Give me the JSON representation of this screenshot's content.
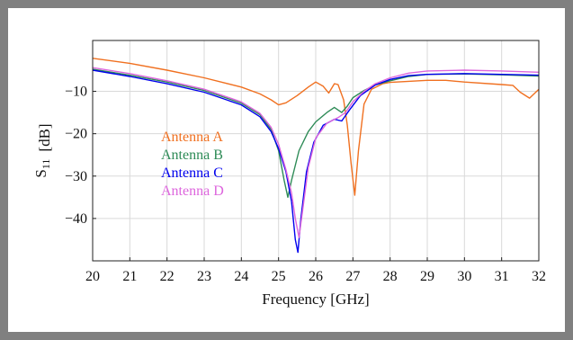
{
  "chart_data": {
    "type": "line",
    "title": "",
    "xlabel": "Frequency [GHz]",
    "ylabel_main": "S",
    "ylabel_sub": "11",
    "ylabel_unit": "[dB]",
    "xlim": [
      20,
      32
    ],
    "ylim": [
      -50,
      2
    ],
    "xticks": [
      20,
      21,
      22,
      23,
      24,
      25,
      26,
      27,
      28,
      29,
      30,
      31,
      32
    ],
    "yticks": [
      -10,
      -20,
      -30,
      -40
    ],
    "ytick_labels": [
      "−10",
      "−20",
      "−30",
      "−40"
    ],
    "grid": true,
    "legend_position": "left-center",
    "series": [
      {
        "name": "Antenna A",
        "color": "#f07020",
        "points": [
          [
            20,
            -2.2
          ],
          [
            21,
            -3.4
          ],
          [
            22,
            -5.0
          ],
          [
            23,
            -6.8
          ],
          [
            24,
            -9.0
          ],
          [
            24.5,
            -10.6
          ],
          [
            24.8,
            -12.0
          ],
          [
            25.0,
            -13.2
          ],
          [
            25.2,
            -12.7
          ],
          [
            25.5,
            -11.0
          ],
          [
            25.8,
            -9.0
          ],
          [
            26.0,
            -7.8
          ],
          [
            26.2,
            -8.8
          ],
          [
            26.35,
            -10.4
          ],
          [
            26.5,
            -8.2
          ],
          [
            26.6,
            -8.4
          ],
          [
            26.75,
            -12.0
          ],
          [
            26.85,
            -18.0
          ],
          [
            26.95,
            -27.0
          ],
          [
            27.05,
            -34.5
          ],
          [
            27.15,
            -24.0
          ],
          [
            27.3,
            -13.0
          ],
          [
            27.5,
            -9.5
          ],
          [
            27.8,
            -8.2
          ],
          [
            28,
            -7.9
          ],
          [
            29,
            -7.4
          ],
          [
            29.5,
            -7.4
          ],
          [
            30,
            -7.8
          ],
          [
            31,
            -8.4
          ],
          [
            31.3,
            -8.6
          ],
          [
            31.5,
            -10.2
          ],
          [
            31.75,
            -11.6
          ],
          [
            32,
            -9.5
          ]
        ]
      },
      {
        "name": "Antenna B",
        "color": "#2e8b57",
        "points": [
          [
            20,
            -4.8
          ],
          [
            21,
            -6.2
          ],
          [
            22,
            -7.8
          ],
          [
            23,
            -9.8
          ],
          [
            24,
            -12.8
          ],
          [
            24.5,
            -15.5
          ],
          [
            24.8,
            -19.0
          ],
          [
            25.0,
            -24.0
          ],
          [
            25.15,
            -31.0
          ],
          [
            25.25,
            -35.0
          ],
          [
            25.35,
            -31.0
          ],
          [
            25.55,
            -24.0
          ],
          [
            25.8,
            -19.5
          ],
          [
            26.0,
            -17.2
          ],
          [
            26.3,
            -15.0
          ],
          [
            26.5,
            -13.8
          ],
          [
            26.7,
            -15.0
          ],
          [
            26.85,
            -13.5
          ],
          [
            27.0,
            -11.5
          ],
          [
            27.3,
            -9.8
          ],
          [
            27.6,
            -8.5
          ],
          [
            28,
            -7.5
          ],
          [
            28.5,
            -6.5
          ],
          [
            29,
            -6.0
          ],
          [
            30,
            -5.9
          ],
          [
            31,
            -6.1
          ],
          [
            32,
            -6.4
          ]
        ]
      },
      {
        "name": "Antenna C",
        "color": "#0000ee",
        "points": [
          [
            20,
            -5.0
          ],
          [
            21,
            -6.5
          ],
          [
            22,
            -8.2
          ],
          [
            23,
            -10.2
          ],
          [
            24,
            -13.2
          ],
          [
            24.5,
            -16.0
          ],
          [
            24.8,
            -19.5
          ],
          [
            25.0,
            -23.5
          ],
          [
            25.2,
            -29.0
          ],
          [
            25.35,
            -36.0
          ],
          [
            25.45,
            -45.0
          ],
          [
            25.52,
            -48.0
          ],
          [
            25.6,
            -40.0
          ],
          [
            25.75,
            -29.0
          ],
          [
            25.95,
            -22.0
          ],
          [
            26.2,
            -18.0
          ],
          [
            26.5,
            -16.6
          ],
          [
            26.7,
            -17.0
          ],
          [
            26.9,
            -14.5
          ],
          [
            27.2,
            -11.0
          ],
          [
            27.6,
            -8.5
          ],
          [
            28,
            -7.2
          ],
          [
            28.5,
            -6.3
          ],
          [
            29,
            -6.0
          ],
          [
            30,
            -5.8
          ],
          [
            31,
            -6.0
          ],
          [
            32,
            -6.2
          ]
        ]
      },
      {
        "name": "Antenna D",
        "color": "#dd66dd",
        "points": [
          [
            20,
            -4.4
          ],
          [
            21,
            -5.8
          ],
          [
            22,
            -7.5
          ],
          [
            23,
            -9.5
          ],
          [
            24,
            -12.5
          ],
          [
            24.5,
            -15.2
          ],
          [
            24.8,
            -18.5
          ],
          [
            25.0,
            -22.5
          ],
          [
            25.2,
            -28.5
          ],
          [
            25.35,
            -34.0
          ],
          [
            25.45,
            -40.0
          ],
          [
            25.55,
            -44.5
          ],
          [
            25.65,
            -38.0
          ],
          [
            25.8,
            -28.0
          ],
          [
            26.0,
            -21.0
          ],
          [
            26.3,
            -17.5
          ],
          [
            26.6,
            -16.2
          ],
          [
            26.8,
            -15.0
          ],
          [
            27.0,
            -12.5
          ],
          [
            27.3,
            -10.0
          ],
          [
            27.6,
            -8.2
          ],
          [
            28,
            -6.8
          ],
          [
            28.5,
            -5.7
          ],
          [
            29,
            -5.2
          ],
          [
            30,
            -5.0
          ],
          [
            31,
            -5.2
          ],
          [
            32,
            -5.5
          ]
        ]
      }
    ]
  }
}
